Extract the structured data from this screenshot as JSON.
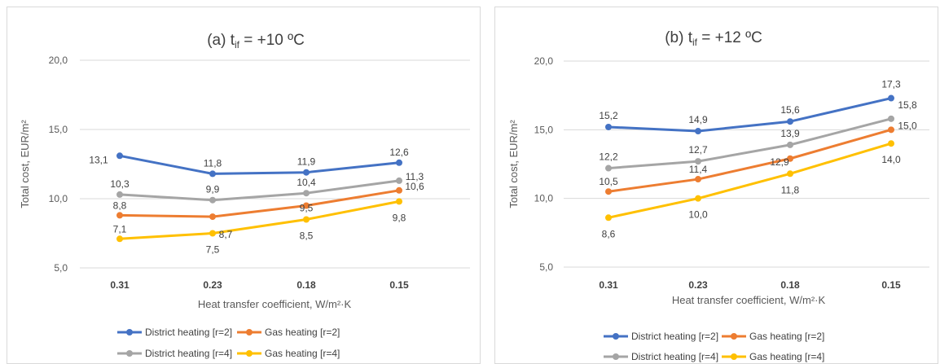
{
  "charts": [
    {
      "id": "a",
      "title_prefix": "(a) t",
      "title_sub": "if",
      "title_suffix": " = +10 ºC",
      "ylabel": "Total cost, EUR/m²",
      "xlabel": "Heat transfer coefficient, W/m²·K",
      "ylim": [
        5,
        20
      ],
      "yticks": [
        "20,0",
        "15,0",
        "10,0",
        "5,0"
      ],
      "ytick_values": [
        20,
        15,
        10,
        5
      ]
    },
    {
      "id": "b",
      "title_prefix": "(b) t",
      "title_sub": "if",
      "title_suffix": " = +12 ºC",
      "ylabel": "Total cost, EUR/m²",
      "xlabel": "Heat transfer coefficient, W/m²·K",
      "ylim": [
        5,
        20
      ],
      "yticks": [
        "20,0",
        "15,0",
        "10,0",
        "5,0"
      ],
      "ytick_values": [
        20,
        15,
        10,
        5
      ]
    }
  ],
  "chart_data": [
    {
      "type": "line",
      "title": "(a) tif = +10 ºC",
      "xlabel": "Heat transfer coefficient, W/m²·K",
      "ylabel": "Total cost, EUR/m²",
      "categories": [
        "0.31",
        "0.23",
        "0.18",
        "0.15"
      ],
      "ylim": [
        5,
        20
      ],
      "grid": true,
      "legend": "bottom",
      "series": [
        {
          "name": "District heating [r=2]",
          "color": "#4472C4",
          "values": [
            13.1,
            11.8,
            11.9,
            12.6
          ],
          "labels": [
            "13,1",
            "11,8",
            "11,9",
            "12,6"
          ]
        },
        {
          "name": "Gas heating [r=2]",
          "color": "#ED7D31",
          "values": [
            8.8,
            8.7,
            9.5,
            10.6
          ],
          "labels": [
            "8,8",
            "8,7",
            "9,5",
            "10,6"
          ]
        },
        {
          "name": "District heating [r=4]",
          "color": "#A5A5A5",
          "values": [
            10.3,
            9.9,
            10.4,
            11.3
          ],
          "labels": [
            "10,3",
            "9,9",
            "10,4",
            "11,3"
          ]
        },
        {
          "name": "Gas heating [r=4]",
          "color": "#FFC000",
          "values": [
            7.1,
            7.5,
            8.5,
            9.8
          ],
          "labels": [
            "7,1",
            "7,5",
            "8,5",
            "9,8"
          ]
        }
      ]
    },
    {
      "type": "line",
      "title": "(b) tif = +12 ºC",
      "xlabel": "Heat transfer coefficient, W/m²·K",
      "ylabel": "Total cost, EUR/m²",
      "categories": [
        "0.31",
        "0.23",
        "0.18",
        "0.15"
      ],
      "ylim": [
        5,
        20
      ],
      "grid": true,
      "legend": "bottom",
      "series": [
        {
          "name": "District heating [r=2]",
          "color": "#4472C4",
          "values": [
            15.2,
            14.9,
            15.6,
            17.3
          ],
          "labels": [
            "15,2",
            "14,9",
            "15,6",
            "17,3"
          ]
        },
        {
          "name": "Gas heating [r=2]",
          "color": "#ED7D31",
          "values": [
            10.5,
            11.4,
            12.9,
            15.0
          ],
          "labels": [
            "10,5",
            "11,4",
            "12,9",
            "15,0"
          ]
        },
        {
          "name": "District heating [r=4]",
          "color": "#A5A5A5",
          "values": [
            12.2,
            12.7,
            13.9,
            15.8
          ],
          "labels": [
            "12,2",
            "12,7",
            "13,9",
            "15,8"
          ]
        },
        {
          "name": "Gas heating [r=4]",
          "color": "#FFC000",
          "values": [
            8.6,
            10.0,
            11.8,
            14.0
          ],
          "labels": [
            "8,6",
            "10,0",
            "11,8",
            "14,0"
          ]
        }
      ]
    }
  ]
}
